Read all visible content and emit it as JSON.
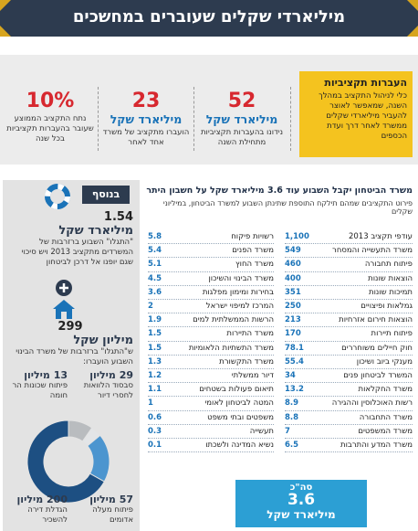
{
  "header": {
    "title": "מיליארדי שקלים שעוברים במחשכים"
  },
  "intro": {
    "heading": "העברות תקציביות",
    "text": "כלי לניהול התקציב במהלך השנה, שמאפשר לאוצר להעביר מיליארדי שקלים ממשרד לאחר דרך ועדת הכספים"
  },
  "stats": [
    {
      "number": "52",
      "unit": "מיליארד שקל",
      "text": "נידונו בהעברות תקציביות מתחילת השנה"
    },
    {
      "number": "23",
      "unit": "מיליארד שקל",
      "text": "הועברו מתקציב של משרד אחד לאחר"
    },
    {
      "number": "10%",
      "text": "נתח התקציב הממוצע שעובר בהעברות תקציביות בכל שנה"
    }
  ],
  "main": {
    "title": "משרד הביטחון יקבל השבוע עוד 3.6 מיליארד שקל על חשבון היתר",
    "subtitle": "פירוט התקציבים שמהם תילקח התוספת שתינתן השבוע למשרד הביטחון, במיליוני שקלים",
    "rows": [
      [
        "עודפי תקציב 2013",
        "1,100"
      ],
      [
        "משרד התעשייה והמסחר",
        "549"
      ],
      [
        "פיתוח תחבורה",
        "460"
      ],
      [
        "הוצאות שונות",
        "400"
      ],
      [
        "תמיכות שונות",
        "351"
      ],
      [
        "גמלאות ופיצויים",
        "250"
      ],
      [
        "הוצאות חירום אזרחיות",
        "213"
      ],
      [
        "פיתוח תיירות",
        "170"
      ],
      [
        "חוק חיילים משוחררים",
        "78.1"
      ],
      [
        "מענקי ביוב ושיכון",
        "55.4"
      ],
      [
        "המשרד לביטחון פנים",
        "34"
      ],
      [
        "משרד החקלאות",
        "13.2"
      ],
      [
        "רשות האוכלוסין וההגירה",
        "8.9"
      ],
      [
        "משרד התחבורה",
        "8.8"
      ],
      [
        "משרד המשפטים",
        "7"
      ],
      [
        "משרד המדע והתרבות",
        "6.5"
      ],
      [
        "רשויות פיקוח",
        "5.8"
      ],
      [
        "משרד הפנים",
        "5.4"
      ],
      [
        "משרד החוץ",
        "5.1"
      ],
      [
        "משרד הבינוי והשיכון",
        "4.5"
      ],
      [
        "בחירות ומימון מפלגות",
        "3.6"
      ],
      [
        "המרכז למיפוי ישראל",
        "2"
      ],
      [
        "הרשות הממשלתית למים",
        "1.9"
      ],
      [
        "משרד התיירות",
        "1.5"
      ],
      [
        "משרד התשתיות הלאומיות",
        "1.5"
      ],
      [
        "משרד התקשורת",
        "1.3"
      ],
      [
        "דיור ממשלתי",
        "1.2"
      ],
      [
        "תיאום פעולות בשטחים",
        "1.1"
      ],
      [
        "המטה לביטחון לאומי",
        "1"
      ],
      [
        "משפטים ובתי משפט",
        "0.6"
      ],
      [
        "תעשייה",
        "0.3"
      ],
      [
        "נשיא המדינה ולשכתו",
        "0.1"
      ]
    ],
    "total": {
      "label": "סה\"כ",
      "value": "3.6",
      "unit": "מיליארד שקל"
    }
  },
  "sidebar": {
    "tag": "בנוסף",
    "items": [
      {
        "number": "1.54",
        "unit": "מיליארד שקל",
        "text": "\"התגלו\" השבוע ברזרבות של המשרדים מתקציב 2013 ויש סיכוי שגם יופנו אל דרכן לביטחון"
      },
      {
        "number": "299",
        "unit": "מיליון שקל",
        "text": "ש\"התגלו\" ברזרבות של משרד הבינוי השבוע הועברו:"
      }
    ],
    "breakdown": {
      "type": "donut",
      "unit": "מיליון",
      "series": [
        {
          "name": "סבסוד הלוואות לחסרי דיור",
          "value": 29,
          "color": "#b9bcbf"
        },
        {
          "name": "פיתוח שכונות הר חומה",
          "value": 13,
          "color": "#e3e5e7"
        },
        {
          "name": "פיתוח מעלה אדומים",
          "value": 57,
          "color": "#4c95cf"
        },
        {
          "name": "הגדלת דירה להשכיר",
          "value": 200,
          "color": "#1d4f82"
        }
      ]
    }
  }
}
